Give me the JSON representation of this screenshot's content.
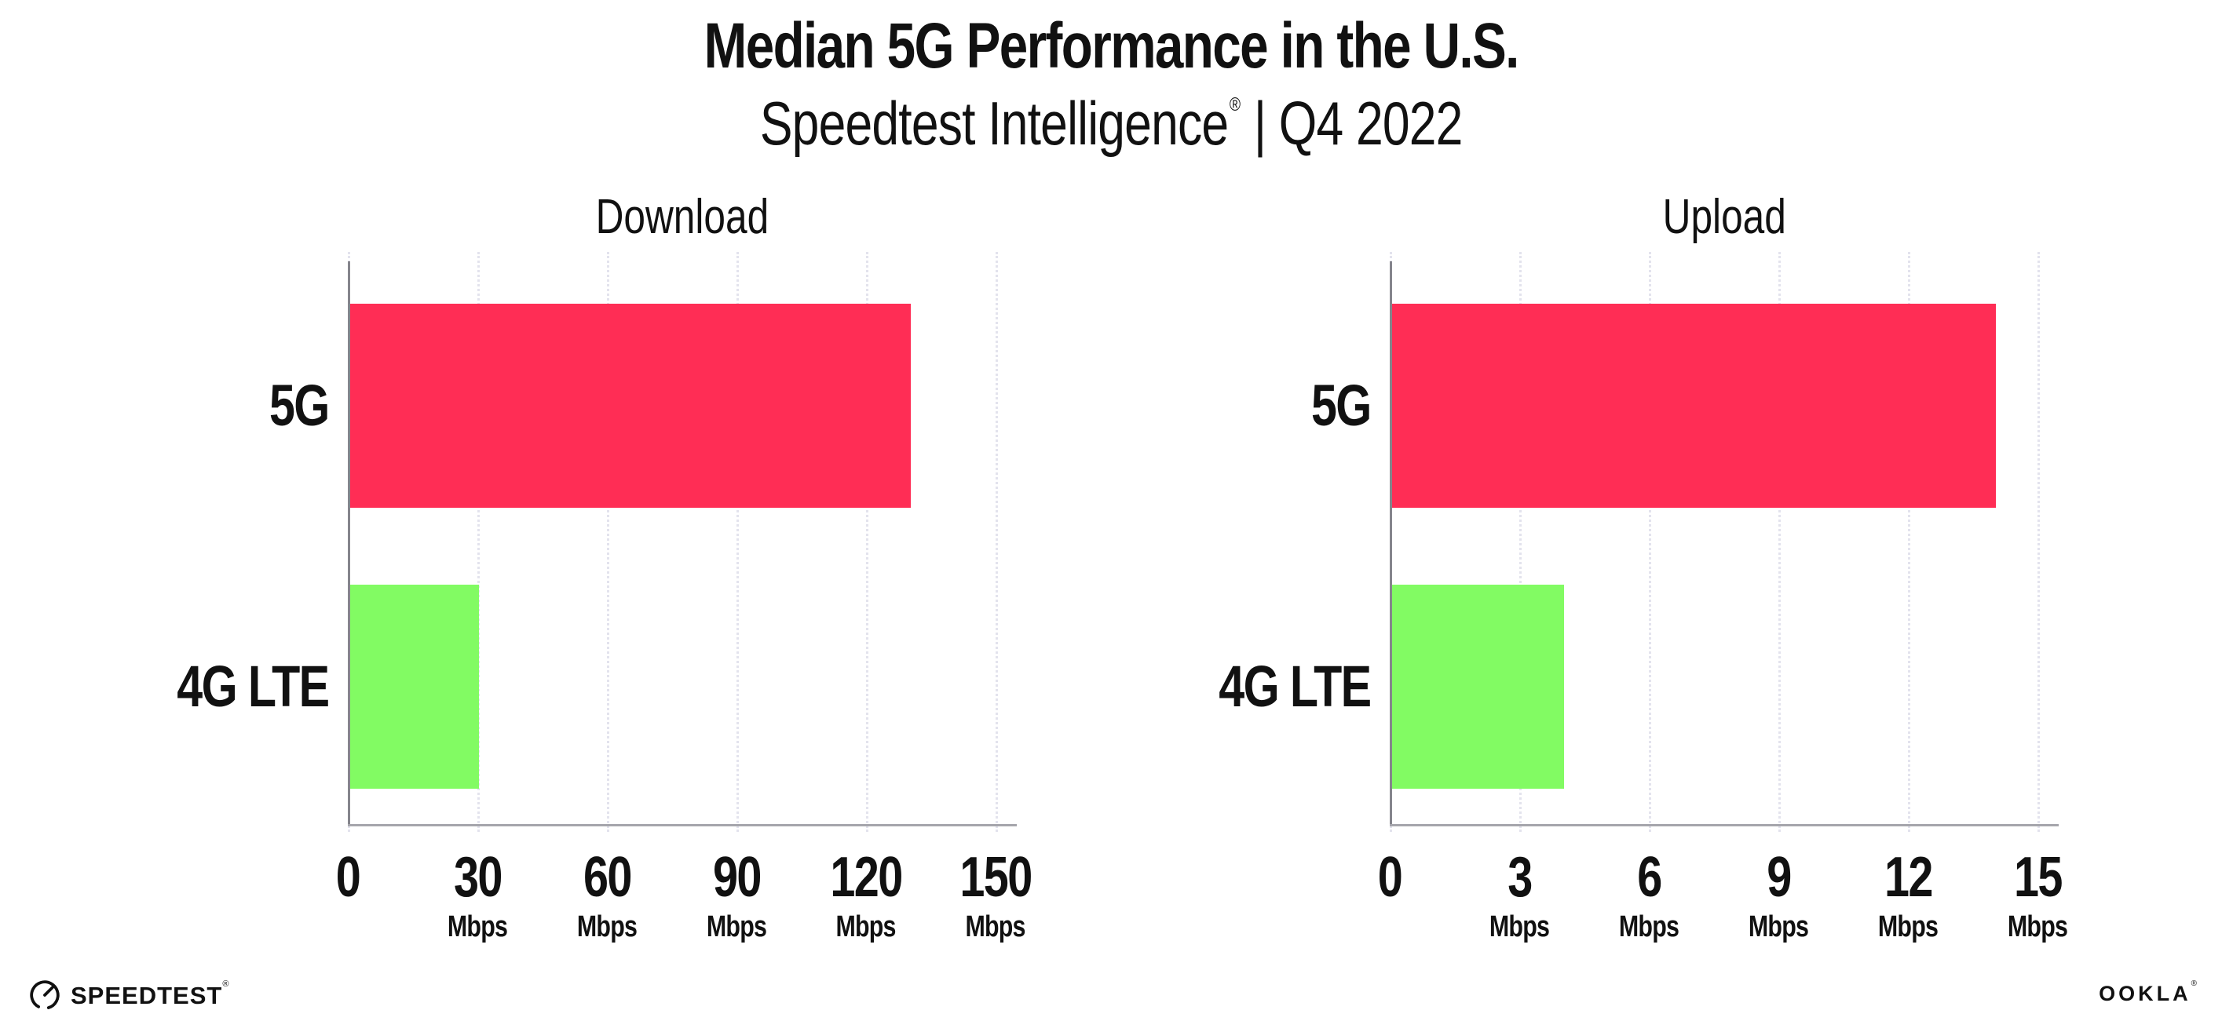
{
  "header": {
    "title": "Median 5G Performance in the U.S.",
    "subtitle_brand": "Speedtest Intelligence",
    "subtitle_mark": "®",
    "subtitle_rest": "| Q4 2022"
  },
  "chart_data": [
    {
      "type": "bar",
      "orientation": "horizontal",
      "title": "Download",
      "unit": "Mbps",
      "categories": [
        "5G",
        "4G LTE"
      ],
      "values": [
        130,
        30
      ],
      "xlim": [
        0,
        150
      ],
      "xticks": [
        0,
        30,
        60,
        90,
        120,
        150
      ],
      "bar_colors": [
        "#ff2d55",
        "#82fb63"
      ],
      "grid": "vertical-dotted",
      "legend": "none"
    },
    {
      "type": "bar",
      "orientation": "horizontal",
      "title": "Upload",
      "unit": "Mbps",
      "categories": [
        "5G",
        "4G LTE"
      ],
      "values": [
        14,
        4
      ],
      "xlim": [
        0,
        15
      ],
      "xticks": [
        0,
        3,
        6,
        9,
        12,
        15
      ],
      "bar_colors": [
        "#ff2d55",
        "#82fb63"
      ],
      "grid": "vertical-dotted",
      "legend": "none"
    }
  ],
  "footer": {
    "speedtest_label": "SPEEDTEST",
    "speedtest_mark": "®",
    "ookla_label": "OOKLA",
    "ookla_mark": "®"
  },
  "style": {
    "bar_5g": "#ff2d55",
    "bar_4g_lte": "#82fb63",
    "gridline": "#e3e3ed",
    "axis_left": "#85858c",
    "axis_bottom": "#a6a6ac",
    "ink": "#111111"
  }
}
